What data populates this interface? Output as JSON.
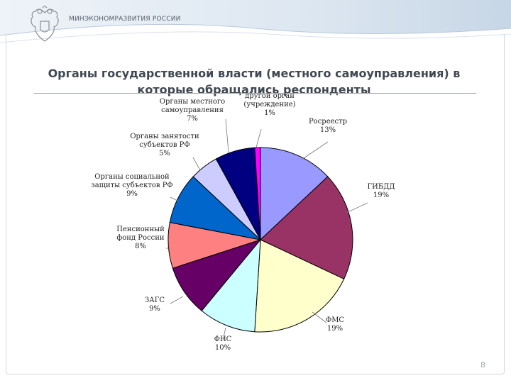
{
  "header": {
    "ministry": "МИНЭКОНОМРАЗВИТИЯ РОССИИ"
  },
  "page_number": "8",
  "colors": {
    "accent": "#7fa8cf",
    "header_band": "#dbe6f0"
  },
  "chart_data": {
    "type": "pie",
    "title": "Органы государственной власти (местного самоуправления) в которые обращались респонденты",
    "slices": [
      {
        "lines": [
          "Росреестр",
          "13%"
        ],
        "value": 13,
        "color": "#9999ff"
      },
      {
        "lines": [
          "ГИБДД",
          "19%"
        ],
        "value": 19,
        "color": "#993366"
      },
      {
        "lines": [
          "ФМС",
          "19%"
        ],
        "value": 19,
        "color": "#ffffcc"
      },
      {
        "lines": [
          "ФНС",
          "10%"
        ],
        "value": 10,
        "color": "#ccffff"
      },
      {
        "lines": [
          "ЗАГС",
          "9%"
        ],
        "value": 9,
        "color": "#660066"
      },
      {
        "lines": [
          "Пенсионный",
          "фонд России",
          "8%"
        ],
        "value": 8,
        "color": "#ff8080"
      },
      {
        "lines": [
          "Органы социальной",
          "защиты субъектов РФ",
          "9%"
        ],
        "value": 9,
        "color": "#0066cc"
      },
      {
        "lines": [
          "Органы занятости",
          "субъектов РФ",
          "5%"
        ],
        "value": 5,
        "color": "#ccccff"
      },
      {
        "lines": [
          "Органы местного",
          "самоуправления",
          "7%"
        ],
        "value": 7,
        "color": "#000080"
      },
      {
        "lines": [
          "другой орган",
          "(учреждение)",
          "1%"
        ],
        "value": 1,
        "color": "#ff00ff"
      }
    ]
  }
}
